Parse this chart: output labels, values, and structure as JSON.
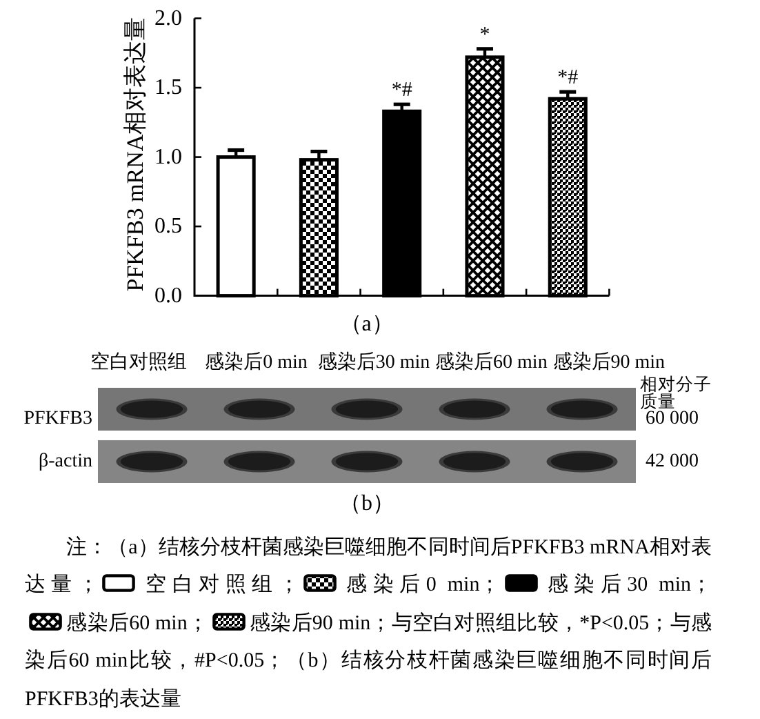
{
  "chart_data": [
    {
      "type": "bar",
      "title": "（a）",
      "ylabel": "PFKFB3 mRNA相对表达量",
      "categories": [
        null,
        null,
        null,
        null,
        null
      ],
      "series": [
        {
          "name": "空白对照组",
          "color": "#ffffff",
          "values": [
            1.0,
            null,
            null,
            null,
            null
          ],
          "errors": [
            0.05,
            null,
            null,
            null,
            null
          ]
        },
        {
          "name": "感染后0 min",
          "color": "#000000",
          "values": [
            null,
            0.98,
            null,
            null,
            null
          ],
          "errors": [
            null,
            0.06,
            null,
            null,
            null
          ]
        },
        {
          "name": "感染后30 min",
          "color": "#000000",
          "values": [
            null,
            null,
            1.33,
            null,
            null
          ],
          "errors": [
            null,
            null,
            0.05,
            null,
            null
          ],
          "value_labels": [
            null,
            null,
            "*#",
            null,
            null
          ]
        },
        {
          "name": "感染后60 min",
          "color": "#000000",
          "values": [
            null,
            null,
            null,
            1.72,
            null
          ],
          "errors": [
            null,
            null,
            null,
            0.06,
            null
          ],
          "value_labels": [
            null,
            null,
            null,
            "*",
            null
          ]
        },
        {
          "name": "感染后90 min",
          "color": "#000000",
          "values": [
            null,
            null,
            null,
            null,
            1.42
          ],
          "errors": [
            null,
            null,
            null,
            null,
            0.05
          ],
          "value_labels": [
            null,
            null,
            null,
            null,
            "*#"
          ]
        }
      ],
      "ylim": [
        0,
        2
      ],
      "yticks": [
        {
          "value": 0,
          "label": "0.0"
        },
        {
          "value": 0.5,
          "label": "0.5"
        },
        {
          "value": 1,
          "label": "1.0"
        },
        {
          "value": 1.5,
          "label": "1.5"
        },
        {
          "value": 2,
          "label": "2.0"
        }
      ],
      "legend": "bottom",
      "annotations": [
        "注：（a）结核分枝杆菌感染巨噬细胞不同时间后PFKFB3 mRNA相对表达量；",
        "；",
        "；",
        "；",
        "；",
        "；与空白对照组比较，*P<0.05；与感染后60 min比较，#P<0.05；（b）结核分枝杆菌感染巨噬细胞不同时间后PFKFB3的表达量"
      ]
    },
    {
      "type": "other",
      "title": "（b）",
      "categories": [
        "空白对照组",
        "感染后0 min",
        "感染后30 min",
        "感染后60 min",
        "感染后90 min"
      ],
      "y_categories": [
        "PFKFB3",
        "β-actin"
      ],
      "y2_categories": [
        "60 000",
        "42 000"
      ],
      "y2label": "相对分子质量"
    }
  ]
}
